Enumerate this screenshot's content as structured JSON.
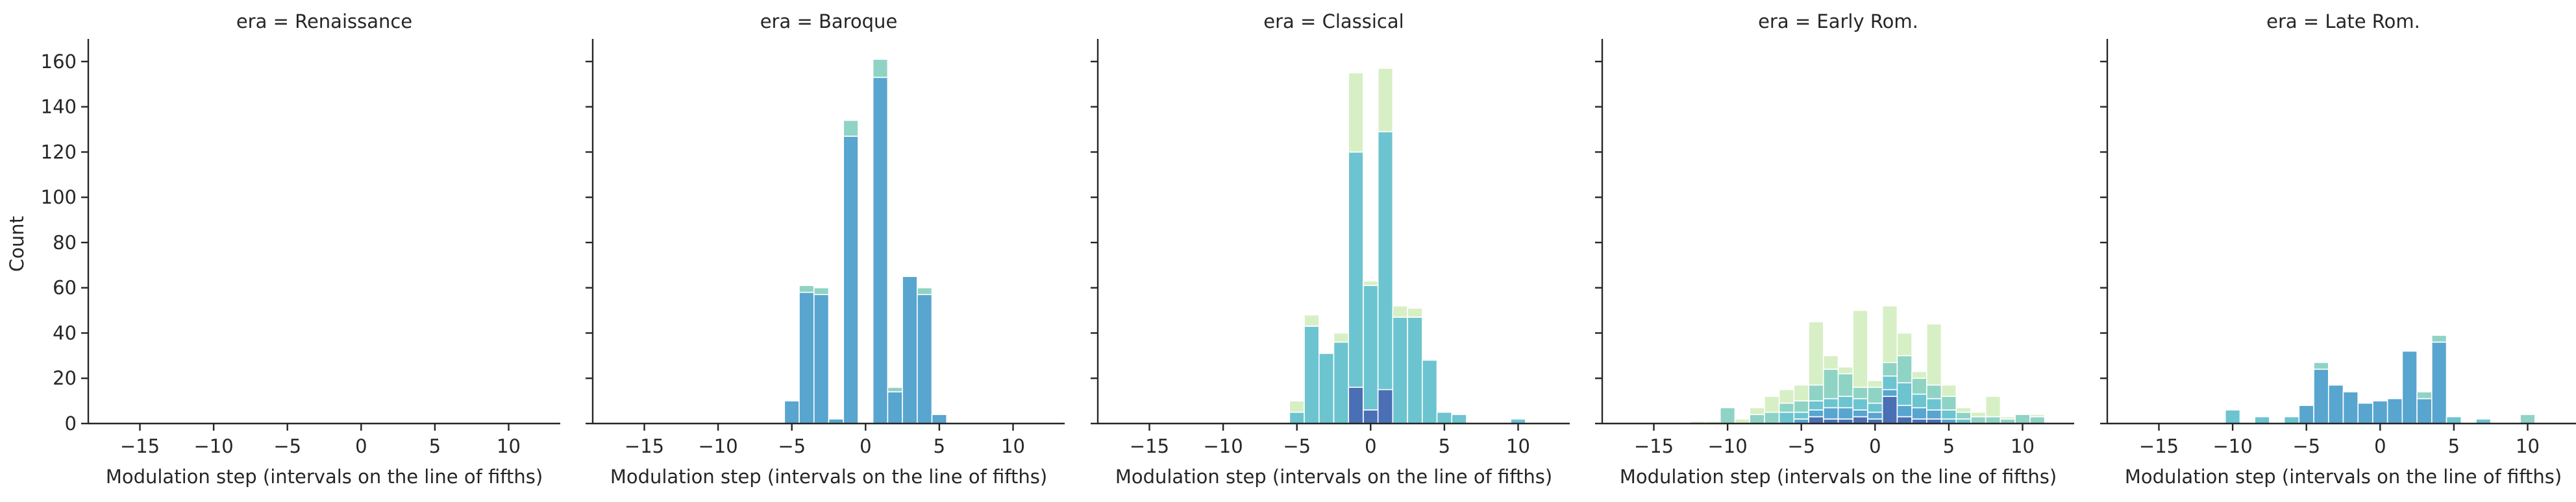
{
  "chart_data": {
    "type": "bar",
    "subtype": "faceted stacked histogram",
    "facet_title_template": "era = {facet}",
    "facets": [
      "Renaissance",
      "Baroque",
      "Classical",
      "Early Rom.",
      "Late Rom."
    ],
    "facet_titles": [
      "era = Renaissance",
      "era = Baroque",
      "era = Classical",
      "era = Early Rom.",
      "era = Late Rom."
    ],
    "xlabel": "Modulation step (intervals on the line of fifths)",
    "ylabel": "Count",
    "xlim": [
      -18.5,
      13.5
    ],
    "ylim": [
      0,
      170
    ],
    "xticks": [
      -15,
      -10,
      -5,
      0,
      5,
      10
    ],
    "xtick_labels": [
      "−15",
      "−10",
      "−5",
      "0",
      "5",
      "10"
    ],
    "yticks": [
      0,
      20,
      40,
      60,
      80,
      100,
      120,
      140,
      160
    ],
    "ytick_labels": [
      "0",
      "20",
      "40",
      "60",
      "80",
      "100",
      "120",
      "140",
      "160"
    ],
    "grid": false,
    "legend": "none",
    "bin_width": 1,
    "layer_colors": [
      "#4a6fb5",
      "#58a5cf",
      "#6cc4d0",
      "#8fd3c4",
      "#d7efc4"
    ],
    "panels": [
      {
        "facet": "Renaissance",
        "bars": []
      },
      {
        "facet": "Baroque",
        "bars": [
          {
            "x": -5,
            "stack": [
              {
                "layer": 1,
                "value": 10
              }
            ]
          },
          {
            "x": -4,
            "stack": [
              {
                "layer": 1,
                "value": 58
              },
              {
                "layer": 3,
                "value": 3
              }
            ]
          },
          {
            "x": -3,
            "stack": [
              {
                "layer": 1,
                "value": 57
              },
              {
                "layer": 3,
                "value": 3
              }
            ]
          },
          {
            "x": -2,
            "stack": [
              {
                "layer": 1,
                "value": 2
              }
            ]
          },
          {
            "x": -1,
            "stack": [
              {
                "layer": 1,
                "value": 127
              },
              {
                "layer": 3,
                "value": 7
              }
            ]
          },
          {
            "x": 1,
            "stack": [
              {
                "layer": 1,
                "value": 153
              },
              {
                "layer": 3,
                "value": 8
              }
            ]
          },
          {
            "x": 2,
            "stack": [
              {
                "layer": 1,
                "value": 14
              },
              {
                "layer": 3,
                "value": 2
              }
            ]
          },
          {
            "x": 3,
            "stack": [
              {
                "layer": 1,
                "value": 65
              }
            ]
          },
          {
            "x": 4,
            "stack": [
              {
                "layer": 1,
                "value": 57
              },
              {
                "layer": 3,
                "value": 3
              }
            ]
          },
          {
            "x": 5,
            "stack": [
              {
                "layer": 1,
                "value": 4
              }
            ]
          }
        ]
      },
      {
        "facet": "Classical",
        "bars": [
          {
            "x": -5,
            "stack": [
              {
                "layer": 2,
                "value": 5
              },
              {
                "layer": 4,
                "value": 5
              }
            ]
          },
          {
            "x": -4,
            "stack": [
              {
                "layer": 2,
                "value": 43
              },
              {
                "layer": 4,
                "value": 5
              }
            ]
          },
          {
            "x": -3,
            "stack": [
              {
                "layer": 2,
                "value": 31
              }
            ]
          },
          {
            "x": -2,
            "stack": [
              {
                "layer": 2,
                "value": 36
              },
              {
                "layer": 4,
                "value": 4
              }
            ]
          },
          {
            "x": -1,
            "stack": [
              {
                "layer": 0,
                "value": 16
              },
              {
                "layer": 2,
                "value": 104
              },
              {
                "layer": 4,
                "value": 35
              }
            ]
          },
          {
            "x": 0,
            "stack": [
              {
                "layer": 0,
                "value": 6
              },
              {
                "layer": 2,
                "value": 55
              },
              {
                "layer": 4,
                "value": 2
              }
            ]
          },
          {
            "x": 1,
            "stack": [
              {
                "layer": 0,
                "value": 15
              },
              {
                "layer": 2,
                "value": 114
              },
              {
                "layer": 4,
                "value": 28
              }
            ]
          },
          {
            "x": 2,
            "stack": [
              {
                "layer": 2,
                "value": 47
              },
              {
                "layer": 4,
                "value": 5
              }
            ]
          },
          {
            "x": 3,
            "stack": [
              {
                "layer": 2,
                "value": 47
              },
              {
                "layer": 4,
                "value": 4
              }
            ]
          },
          {
            "x": 4,
            "stack": [
              {
                "layer": 2,
                "value": 28
              }
            ]
          },
          {
            "x": 5,
            "stack": [
              {
                "layer": 2,
                "value": 5
              }
            ]
          },
          {
            "x": 6,
            "stack": [
              {
                "layer": 2,
                "value": 4
              }
            ]
          },
          {
            "x": 10,
            "stack": [
              {
                "layer": 2,
                "value": 2
              }
            ]
          }
        ]
      },
      {
        "facet": "Early Rom.",
        "bars": [
          {
            "x": -12,
            "stack": [
              {
                "layer": 4,
                "value": 1
              }
            ]
          },
          {
            "x": -11,
            "stack": [
              {
                "layer": 4,
                "value": 1
              }
            ]
          },
          {
            "x": -10,
            "stack": [
              {
                "layer": 3,
                "value": 7
              }
            ]
          },
          {
            "x": -9,
            "stack": [
              {
                "layer": 4,
                "value": 2
              }
            ]
          },
          {
            "x": -8,
            "stack": [
              {
                "layer": 3,
                "value": 4
              },
              {
                "layer": 4,
                "value": 3
              }
            ]
          },
          {
            "x": -7,
            "stack": [
              {
                "layer": 3,
                "value": 5
              },
              {
                "layer": 4,
                "value": 7
              }
            ]
          },
          {
            "x": -6,
            "stack": [
              {
                "layer": 2,
                "value": 5
              },
              {
                "layer": 3,
                "value": 4
              },
              {
                "layer": 4,
                "value": 6
              }
            ]
          },
          {
            "x": -5,
            "stack": [
              {
                "layer": 1,
                "value": 2
              },
              {
                "layer": 2,
                "value": 3
              },
              {
                "layer": 3,
                "value": 5
              },
              {
                "layer": 4,
                "value": 7
              }
            ]
          },
          {
            "x": -4,
            "stack": [
              {
                "layer": 0,
                "value": 3
              },
              {
                "layer": 1,
                "value": 3
              },
              {
                "layer": 2,
                "value": 4
              },
              {
                "layer": 3,
                "value": 7
              },
              {
                "layer": 4,
                "value": 28
              }
            ]
          },
          {
            "x": -3,
            "stack": [
              {
                "layer": 0,
                "value": 2
              },
              {
                "layer": 1,
                "value": 5
              },
              {
                "layer": 2,
                "value": 4
              },
              {
                "layer": 3,
                "value": 13
              },
              {
                "layer": 4,
                "value": 6
              }
            ]
          },
          {
            "x": -2,
            "stack": [
              {
                "layer": 0,
                "value": 2
              },
              {
                "layer": 1,
                "value": 5
              },
              {
                "layer": 2,
                "value": 5
              },
              {
                "layer": 3,
                "value": 10
              },
              {
                "layer": 4,
                "value": 3
              }
            ]
          },
          {
            "x": -1,
            "stack": [
              {
                "layer": 0,
                "value": 3
              },
              {
                "layer": 1,
                "value": 3
              },
              {
                "layer": 2,
                "value": 5
              },
              {
                "layer": 3,
                "value": 5
              },
              {
                "layer": 4,
                "value": 34
              }
            ]
          },
          {
            "x": 0,
            "stack": [
              {
                "layer": 0,
                "value": 2
              },
              {
                "layer": 1,
                "value": 3
              },
              {
                "layer": 2,
                "value": 4
              },
              {
                "layer": 3,
                "value": 7
              },
              {
                "layer": 4,
                "value": 3
              }
            ]
          },
          {
            "x": 1,
            "stack": [
              {
                "layer": 0,
                "value": 12
              },
              {
                "layer": 1,
                "value": 3
              },
              {
                "layer": 2,
                "value": 6
              },
              {
                "layer": 3,
                "value": 6
              },
              {
                "layer": 4,
                "value": 25
              }
            ]
          },
          {
            "x": 2,
            "stack": [
              {
                "layer": 0,
                "value": 3
              },
              {
                "layer": 1,
                "value": 5
              },
              {
                "layer": 2,
                "value": 10
              },
              {
                "layer": 3,
                "value": 12
              },
              {
                "layer": 4,
                "value": 10
              }
            ]
          },
          {
            "x": 3,
            "stack": [
              {
                "layer": 0,
                "value": 2
              },
              {
                "layer": 1,
                "value": 5
              },
              {
                "layer": 2,
                "value": 6
              },
              {
                "layer": 3,
                "value": 7
              },
              {
                "layer": 4,
                "value": 3
              }
            ]
          },
          {
            "x": 4,
            "stack": [
              {
                "layer": 0,
                "value": 2
              },
              {
                "layer": 1,
                "value": 4
              },
              {
                "layer": 2,
                "value": 5
              },
              {
                "layer": 3,
                "value": 6
              },
              {
                "layer": 4,
                "value": 27
              }
            ]
          },
          {
            "x": 5,
            "stack": [
              {
                "layer": 1,
                "value": 2
              },
              {
                "layer": 2,
                "value": 4
              },
              {
                "layer": 3,
                "value": 6
              },
              {
                "layer": 4,
                "value": 5
              }
            ]
          },
          {
            "x": 6,
            "stack": [
              {
                "layer": 2,
                "value": 2
              },
              {
                "layer": 3,
                "value": 3
              },
              {
                "layer": 4,
                "value": 2
              }
            ]
          },
          {
            "x": 7,
            "stack": [
              {
                "layer": 3,
                "value": 3
              },
              {
                "layer": 4,
                "value": 2
              }
            ]
          },
          {
            "x": 8,
            "stack": [
              {
                "layer": 3,
                "value": 3
              },
              {
                "layer": 4,
                "value": 9
              }
            ]
          },
          {
            "x": 9,
            "stack": [
              {
                "layer": 3,
                "value": 2
              },
              {
                "layer": 4,
                "value": 1
              }
            ]
          },
          {
            "x": 10,
            "stack": [
              {
                "layer": 3,
                "value": 4
              }
            ]
          },
          {
            "x": 11,
            "stack": [
              {
                "layer": 3,
                "value": 3
              },
              {
                "layer": 4,
                "value": 1
              }
            ]
          }
        ]
      },
      {
        "facet": "Late Rom.",
        "bars": [
          {
            "x": -10,
            "stack": [
              {
                "layer": 2,
                "value": 6
              }
            ]
          },
          {
            "x": -8,
            "stack": [
              {
                "layer": 2,
                "value": 3
              }
            ]
          },
          {
            "x": -6,
            "stack": [
              {
                "layer": 2,
                "value": 3
              }
            ]
          },
          {
            "x": -5,
            "stack": [
              {
                "layer": 1,
                "value": 8
              }
            ]
          },
          {
            "x": -4,
            "stack": [
              {
                "layer": 1,
                "value": 24
              },
              {
                "layer": 3,
                "value": 3
              }
            ]
          },
          {
            "x": -3,
            "stack": [
              {
                "layer": 1,
                "value": 17
              }
            ]
          },
          {
            "x": -2,
            "stack": [
              {
                "layer": 1,
                "value": 14
              }
            ]
          },
          {
            "x": -1,
            "stack": [
              {
                "layer": 1,
                "value": 9
              }
            ]
          },
          {
            "x": 0,
            "stack": [
              {
                "layer": 1,
                "value": 10
              }
            ]
          },
          {
            "x": 1,
            "stack": [
              {
                "layer": 1,
                "value": 11
              }
            ]
          },
          {
            "x": 2,
            "stack": [
              {
                "layer": 1,
                "value": 32
              }
            ]
          },
          {
            "x": 3,
            "stack": [
              {
                "layer": 1,
                "value": 11
              },
              {
                "layer": 3,
                "value": 3
              }
            ]
          },
          {
            "x": 4,
            "stack": [
              {
                "layer": 1,
                "value": 36
              },
              {
                "layer": 3,
                "value": 3
              }
            ]
          },
          {
            "x": 5,
            "stack": [
              {
                "layer": 2,
                "value": 3
              }
            ]
          },
          {
            "x": 7,
            "stack": [
              {
                "layer": 2,
                "value": 2
              }
            ]
          },
          {
            "x": 10,
            "stack": [
              {
                "layer": 3,
                "value": 4
              }
            ]
          }
        ]
      }
    ]
  }
}
